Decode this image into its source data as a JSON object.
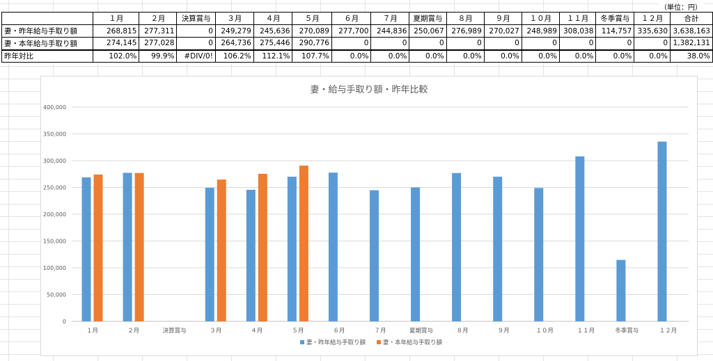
{
  "sheet": {
    "unit_label": "（単位：円）",
    "columns": [
      "",
      "１月",
      "２月",
      "決算賞与",
      "３月",
      "４月",
      "５月",
      "６月",
      "７月",
      "夏期賞与",
      "８月",
      "９月",
      "１０月",
      "１１月",
      "冬季賞与",
      "１２月",
      "合計"
    ],
    "rows": [
      {
        "label": "妻・昨年給与手取り額",
        "values": [
          "268,815",
          "277,311",
          "0",
          "249,279",
          "245,636",
          "270,089",
          "277,700",
          "244,836",
          "250,067",
          "276,989",
          "270,027",
          "248,989",
          "308,038",
          "114,757",
          "335,630",
          "3,638,163"
        ]
      },
      {
        "label": "妻・本年給与手取り額",
        "values": [
          "274,145",
          "277,028",
          "0",
          "264,736",
          "275,446",
          "290,776",
          "0",
          "0",
          "0",
          "0",
          "0",
          "0",
          "0",
          "0",
          "0",
          "1,382,131"
        ]
      },
      {
        "label": "昨年対比",
        "values": [
          "102.0%",
          "99.9%",
          "#DIV/0!",
          "106.2%",
          "112.1%",
          "107.7%",
          "0.0%",
          "0.0%",
          "0.0%",
          "0.0%",
          "0.0%",
          "0.0%",
          "0.0%",
          "0.0%",
          "0.0%",
          "38.0%"
        ]
      }
    ]
  },
  "colors": {
    "series_prev": "#5b9bd5",
    "series_curr": "#ed7d31",
    "gridline": "#d9d9d9",
    "axis_text": "#595959"
  },
  "chart_data": {
    "type": "bar",
    "title": "妻・給与手取り額・昨年比較",
    "categories": [
      "１月",
      "２月",
      "決算賞与",
      "３月",
      "４月",
      "５月",
      "６月",
      "７月",
      "夏期賞与",
      "８月",
      "９月",
      "１０月",
      "１１月",
      "冬季賞与",
      "１２月"
    ],
    "series": [
      {
        "name": "妻・昨年給与手取り額",
        "values": [
          268815,
          277311,
          0,
          249279,
          245636,
          270089,
          277700,
          244836,
          250067,
          276989,
          270027,
          248989,
          308038,
          114757,
          335630
        ]
      },
      {
        "name": "妻・本年給与手取り額",
        "values": [
          274145,
          277028,
          0,
          264736,
          275446,
          290776,
          0,
          0,
          0,
          0,
          0,
          0,
          0,
          0,
          0
        ]
      }
    ],
    "ylim": [
      0,
      400000
    ],
    "yticks": [
      "0",
      "50,000",
      "100,000",
      "150,000",
      "200,000",
      "250,000",
      "300,000",
      "350,000",
      "400,000"
    ],
    "grid": true,
    "legend": "bottom"
  }
}
